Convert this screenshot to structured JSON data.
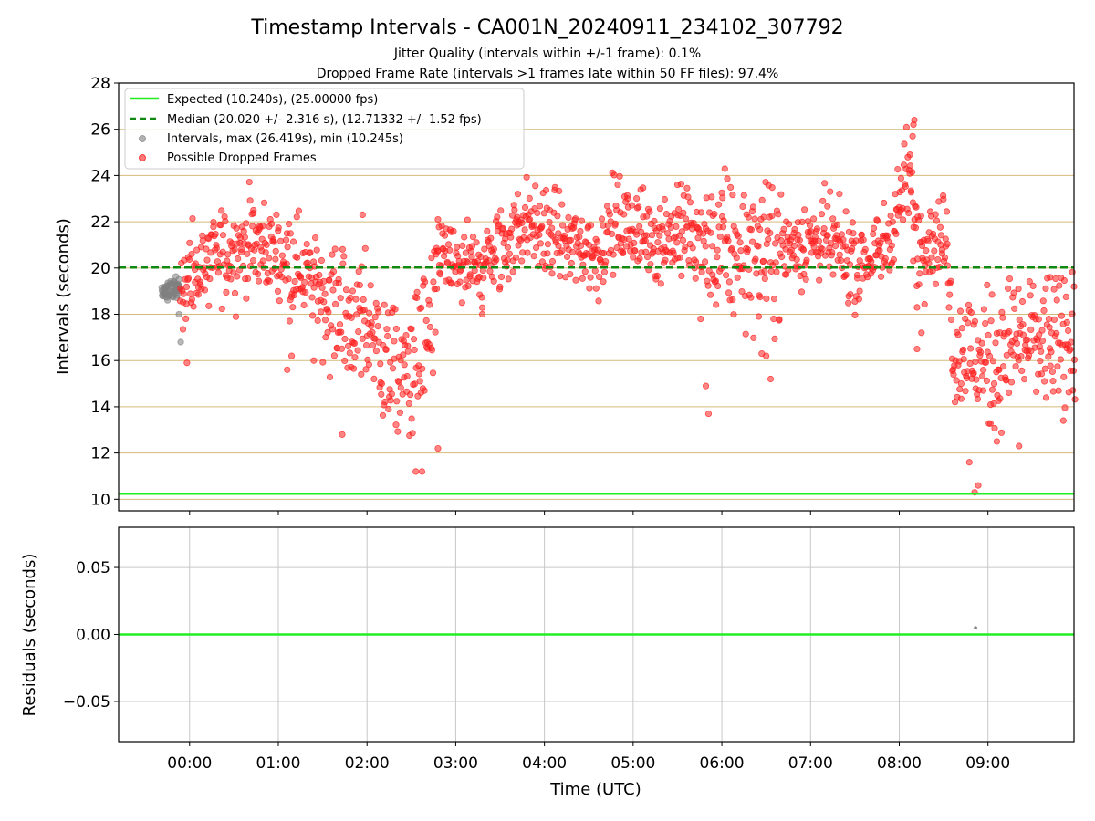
{
  "chart_data": [
    {
      "type": "scatter",
      "title": "Timestamp Intervals - CA001N_20240911_234102_307792",
      "subtitle_1": "Jitter Quality (intervals within +/-1 frame): 0.1%",
      "subtitle_2": "Dropped Frame Rate (intervals >1 frames late within 50 FF files): 97.4%",
      "xlabel": "",
      "ylabel": "Intervals (seconds)",
      "ylim": [
        9.5,
        28
      ],
      "y_ticks": [
        10,
        12,
        14,
        16,
        18,
        20,
        22,
        24,
        26,
        28
      ],
      "grid": "horizontal",
      "grid_color": "#d4bb7a",
      "legend_position": "top-left",
      "reference_lines": [
        {
          "name": "Expected (10.240s), (25.00000 fps)",
          "y": 10.24,
          "style": "solid",
          "color": "#22ee22"
        },
        {
          "name": "Median (20.020 +/- 2.316 s), (12.71332 +/- 1.52 fps)",
          "y": 20.02,
          "style": "dashed",
          "color": "#118811"
        }
      ],
      "series": [
        {
          "name": "Intervals, max (26.419s), min (10.245s)",
          "color": "#808080",
          "x_start": "23:41:02",
          "x_end": "23:53:30",
          "trend": [
            [
              -0.3,
              19.0
            ],
            [
              -0.08,
              19.2
            ]
          ],
          "spread": 0.5,
          "outliers": [
            [
              -0.1,
              16.8
            ],
            [
              -0.12,
              18.0
            ]
          ]
        },
        {
          "name": "Possible Dropped Frames",
          "color": "#ff2020",
          "x_start": "23:53:30",
          "x_end": "09:59:00",
          "trend": [
            [
              0.0,
              19.4
            ],
            [
              0.3,
              20.5
            ],
            [
              0.6,
              21.0
            ],
            [
              0.9,
              20.8
            ],
            [
              1.2,
              20.3
            ],
            [
              1.45,
              19.2
            ],
            [
              1.7,
              18.0
            ],
            [
              2.0,
              17.5
            ],
            [
              2.2,
              16.0
            ],
            [
              2.4,
              15.3
            ],
            [
              2.6,
              16.5
            ],
            [
              2.75,
              17.0
            ],
            [
              2.8,
              21.0
            ],
            [
              2.9,
              20.2
            ],
            [
              3.2,
              19.9
            ],
            [
              3.5,
              20.6
            ],
            [
              3.75,
              22.0
            ],
            [
              4.0,
              21.6
            ],
            [
              4.3,
              21.0
            ],
            [
              4.6,
              20.6
            ],
            [
              4.8,
              22.0
            ],
            [
              5.0,
              21.6
            ],
            [
              5.3,
              21.4
            ],
            [
              5.6,
              21.5
            ],
            [
              5.8,
              20.6
            ],
            [
              6.0,
              20.8
            ],
            [
              6.3,
              20.7
            ],
            [
              6.6,
              20.6
            ],
            [
              6.9,
              21.2
            ],
            [
              7.2,
              21.1
            ],
            [
              7.5,
              20.2
            ],
            [
              7.8,
              20.6
            ],
            [
              8.0,
              22.8
            ],
            [
              8.1,
              24.3
            ],
            [
              8.2,
              21.2
            ],
            [
              8.4,
              21.4
            ],
            [
              8.55,
              21.0
            ],
            [
              8.6,
              16.6
            ],
            [
              8.8,
              16.2
            ],
            [
              9.0,
              15.8
            ],
            [
              9.3,
              16.8
            ],
            [
              9.6,
              16.8
            ],
            [
              9.97,
              16.5
            ]
          ],
          "spread": 1.7,
          "outliers": [
            [
              8.17,
              26.4
            ],
            [
              8.16,
              26.2
            ],
            [
              8.15,
              25.7
            ],
            [
              8.12,
              24.9
            ],
            [
              5.5,
              23.6
            ],
            [
              3.7,
              23.2
            ],
            [
              0.72,
              22.5
            ],
            [
              2.8,
              22.1
            ],
            [
              1.95,
              22.3
            ],
            [
              -0.03,
              15.9
            ],
            [
              0.8,
              20.9
            ],
            [
              1.72,
              12.8
            ],
            [
              2.55,
              11.2
            ],
            [
              2.62,
              11.2
            ],
            [
              2.8,
              12.2
            ],
            [
              8.85,
              10.3
            ],
            [
              8.89,
              10.6
            ],
            [
              8.79,
              11.6
            ],
            [
              9.35,
              12.3
            ],
            [
              9.85,
              13.4
            ],
            [
              5.85,
              13.7
            ],
            [
              5.82,
              14.9
            ],
            [
              6.55,
              15.2
            ],
            [
              6.45,
              16.3
            ],
            [
              6.5,
              16.2
            ],
            [
              1.4,
              16.0
            ],
            [
              1.15,
              16.2
            ],
            [
              1.1,
              15.6
            ],
            [
              8.2,
              18.3
            ],
            [
              8.25,
              17.2
            ],
            [
              8.2,
              16.5
            ],
            [
              9.97,
              19.2
            ],
            [
              9.7,
              19.6
            ],
            [
              9.1,
              12.5
            ],
            [
              3.3,
              18.0
            ]
          ],
          "count": 1500
        }
      ]
    },
    {
      "type": "scatter",
      "title": "",
      "xlabel": "Time (UTC)",
      "ylabel": "Residuals (seconds)",
      "ylim": [
        -0.08,
        0.08
      ],
      "y_ticks": [
        0.05,
        0.0,
        -0.05
      ],
      "y_tick_labels": [
        "0.05",
        "0.00",
        "−0.05"
      ],
      "x_ticks": [
        "00:00",
        "01:00",
        "02:00",
        "03:00",
        "04:00",
        "05:00",
        "06:00",
        "07:00",
        "08:00",
        "09:00"
      ],
      "grid": "both",
      "grid_color": "#c8c8c8",
      "reference_lines": [
        {
          "name": "",
          "y": 0.0,
          "style": "solid",
          "color": "#22ee22"
        }
      ],
      "series": [
        {
          "name": "",
          "color": "#808080",
          "x": [
            8.86
          ],
          "y": [
            0.005
          ]
        }
      ]
    }
  ]
}
